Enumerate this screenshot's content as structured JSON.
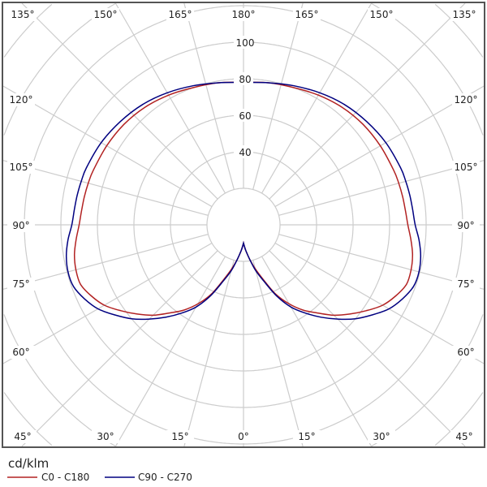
{
  "chart_data": {
    "type": "polar",
    "unit_label": "cd/klm",
    "radial_ticks": [
      40,
      60,
      80,
      100
    ],
    "radial_grid_step": 20,
    "angle_ticks_top": [
      "135°",
      "150°",
      "165°",
      "180°",
      "165°",
      "150°",
      "135°"
    ],
    "angle_ticks_left": [
      "120°",
      "105°",
      "90°",
      "75°",
      "60°"
    ],
    "angle_ticks_right": [
      "120°",
      "105°",
      "90°",
      "75°",
      "60°"
    ],
    "angle_ticks_bottom": [
      "45°",
      "30°",
      "15°",
      "0°",
      "15°",
      "30°",
      "45°"
    ],
    "angle_grid_step_deg": 15,
    "grid": true,
    "legend_position": "bottom-left",
    "colors": {
      "grid": "#cccccc",
      "frame": "#555555"
    },
    "angles_deg": [
      0,
      5,
      10,
      15,
      20,
      25,
      30,
      35,
      40,
      45,
      50,
      55,
      60,
      65,
      70,
      75,
      80,
      85,
      90,
      95,
      100,
      105,
      110,
      120,
      130,
      140,
      150,
      160,
      170,
      180
    ],
    "series": [
      {
        "name": "C0 - C180",
        "color": "#b22222",
        "values": [
          10,
          14,
          19,
          25,
          32,
          42,
          50,
          57,
          63,
          70,
          76,
          82,
          88,
          92,
          95,
          95,
          94,
          92,
          90,
          89,
          88.5,
          88,
          87.5,
          86.5,
          85.5,
          84,
          82,
          80,
          79,
          78
        ]
      },
      {
        "name": "C90 - C270",
        "color": "#000080",
        "values": [
          10,
          14,
          19,
          26,
          33,
          43,
          52,
          59,
          66,
          73,
          80,
          86,
          92,
          96,
          99,
          99.5,
          98.5,
          96.5,
          94,
          93,
          92.5,
          92,
          91.5,
          90,
          88,
          86,
          83.5,
          81,
          79,
          78
        ]
      }
    ]
  }
}
